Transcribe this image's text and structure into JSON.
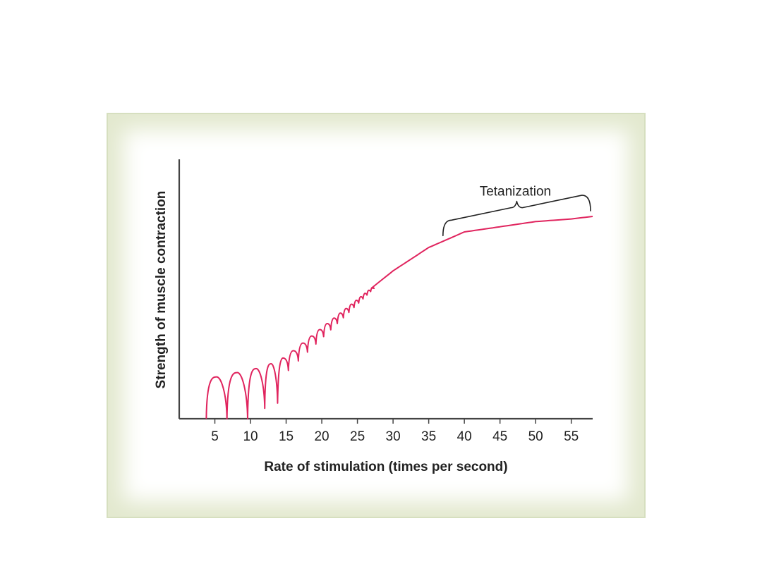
{
  "chart_data": {
    "type": "line",
    "title": "",
    "xlabel": "Rate of stimulation (times per second)",
    "ylabel": "Strength of muscle contraction",
    "x_ticks": [
      5,
      10,
      15,
      20,
      25,
      30,
      35,
      40,
      45,
      50,
      55
    ],
    "xlim": [
      0,
      58
    ],
    "ylim": [
      0,
      100
    ],
    "grid": false,
    "annotation": {
      "label": "Tetanization",
      "x_start": 37,
      "x_end": 58
    },
    "series": [
      {
        "color": "#e0245e",
        "envelope_x": [
          5,
          12,
          15,
          20,
          25,
          30,
          35,
          40,
          45,
          50,
          55,
          58
        ],
        "envelope_y": [
          16,
          20,
          24,
          35,
          46,
          57,
          66,
          72,
          74,
          76,
          77,
          78
        ],
        "twitch_cycles": [
          {
            "x_start": 3.8,
            "x_end": 6.7,
            "trough": 0
          },
          {
            "x_start": 6.7,
            "x_end": 9.6,
            "trough": 0
          },
          {
            "x_start": 9.6,
            "x_end": 12.0,
            "trough": 4
          },
          {
            "x_start": 12.0,
            "x_end": 13.8,
            "trough": 6
          }
        ]
      }
    ]
  }
}
